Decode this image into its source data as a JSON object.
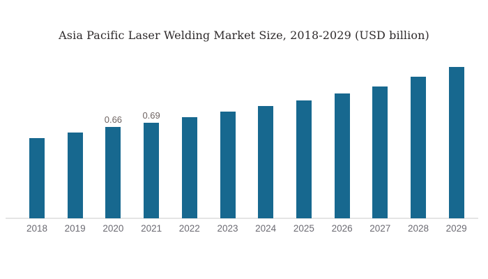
{
  "chart_data": {
    "type": "bar",
    "title": "Asia Pacific Laser Welding Market Size, 2018-2029 (USD billion)",
    "xlabel": "",
    "ylabel": "",
    "categories": [
      "2018",
      "2019",
      "2020",
      "2021",
      "2022",
      "2023",
      "2024",
      "2025",
      "2026",
      "2027",
      "2028",
      "2029"
    ],
    "values": [
      0.58,
      0.62,
      0.66,
      0.69,
      0.73,
      0.77,
      0.81,
      0.85,
      0.9,
      0.95,
      1.02,
      1.09
    ],
    "shown_labels": [
      "",
      "",
      "0.66",
      "0.69",
      "",
      "",
      "",
      "",
      "",
      "",
      "",
      ""
    ],
    "ylim": [
      0,
      1.15
    ],
    "grid": false,
    "legend_position": "none",
    "bar_color": "#17688F",
    "value_label_color": "#6e6361",
    "tick_label_color": "#6b6a72",
    "title_color": "#2e2a2b",
    "axis_line_color": "#e4e4e4",
    "background_color": "#ffffff"
  }
}
